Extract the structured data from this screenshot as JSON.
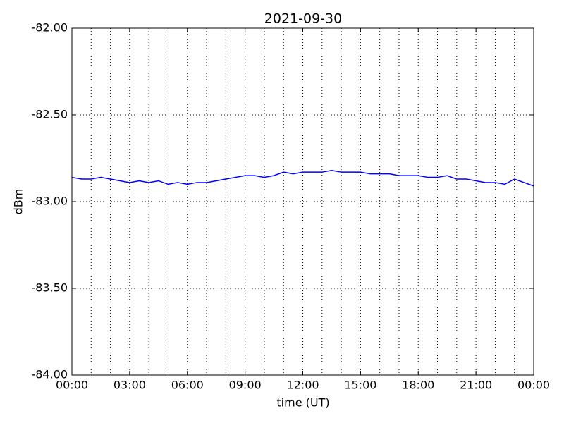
{
  "chart_data": {
    "type": "line",
    "title": "2021-09-30",
    "xlabel": "time (UT)",
    "ylabel": "dBm",
    "x": [
      0,
      0.5,
      1,
      1.5,
      2,
      2.5,
      3,
      3.5,
      4,
      4.5,
      5,
      5.5,
      6,
      6.5,
      7,
      7.5,
      8,
      8.5,
      9,
      9.5,
      10,
      10.5,
      11,
      11.5,
      12,
      12.5,
      13,
      13.5,
      14,
      14.5,
      15,
      15.5,
      16,
      16.5,
      17,
      17.5,
      18,
      18.5,
      19,
      19.5,
      20,
      20.5,
      21,
      21.5,
      22,
      22.5,
      23,
      23.5,
      24
    ],
    "series": [
      {
        "color": "#0000ff",
        "values": [
          -82.86,
          -82.87,
          -82.87,
          -82.86,
          -82.87,
          -82.88,
          -82.89,
          -82.88,
          -82.89,
          -82.88,
          -82.9,
          -82.89,
          -82.9,
          -82.89,
          -82.89,
          -82.88,
          -82.87,
          -82.86,
          -82.85,
          -82.85,
          -82.86,
          -82.85,
          -82.83,
          -82.84,
          -82.83,
          -82.83,
          -82.83,
          -82.82,
          -82.83,
          -82.83,
          -82.83,
          -82.84,
          -82.84,
          -82.84,
          -82.85,
          -82.85,
          -82.85,
          -82.86,
          -82.86,
          -82.85,
          -82.87,
          -82.87,
          -82.88,
          -82.89,
          -82.89,
          -82.9,
          -82.87,
          -82.89,
          -82.91
        ]
      }
    ],
    "xlim": [
      0,
      24
    ],
    "xticks": [
      {
        "value": 0,
        "label": "00:00"
      },
      {
        "value": 3,
        "label": "03:00"
      },
      {
        "value": 6,
        "label": "06:00"
      },
      {
        "value": 9,
        "label": "09:00"
      },
      {
        "value": 12,
        "label": "12:00"
      },
      {
        "value": 15,
        "label": "15:00"
      },
      {
        "value": 18,
        "label": "18:00"
      },
      {
        "value": 21,
        "label": "21:00"
      },
      {
        "value": 24,
        "label": "00:00"
      }
    ],
    "xminorticks": [
      1,
      2,
      4,
      5,
      7,
      8,
      10,
      11,
      13,
      14,
      16,
      17,
      19,
      20,
      22,
      23
    ],
    "ylim": [
      -84,
      -82
    ],
    "yticks": [
      {
        "value": -84,
        "label": "-84.00"
      },
      {
        "value": -83.5,
        "label": "-83.50"
      },
      {
        "value": -83,
        "label": "-83.00"
      },
      {
        "value": -82.5,
        "label": "-82.50"
      },
      {
        "value": -82,
        "label": "-82.00"
      }
    ],
    "grid": true
  }
}
